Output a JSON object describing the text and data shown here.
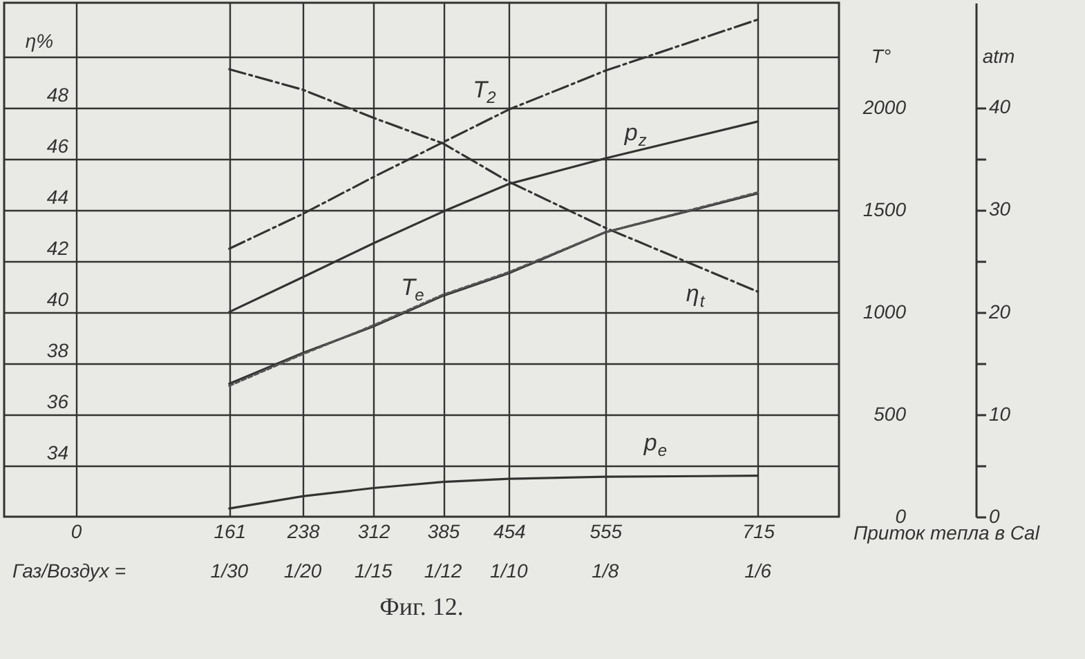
{
  "chart_data": {
    "type": "line",
    "title": "Фиг. 12.",
    "xlabel": "Приток тепла в Cal",
    "ylabel": "η%",
    "y2label": "T°",
    "y3label": "atm",
    "annotations": [
      "Газ/Воздух =",
      "1/30",
      "1/20",
      "1/15",
      "1/12",
      "1/10",
      "1/8",
      "1/6"
    ],
    "x": [
      161,
      238,
      312,
      385,
      454,
      555,
      715
    ],
    "xlim": [
      -75,
      800
    ],
    "xticks": [
      0,
      161,
      238,
      312,
      385,
      454,
      555,
      715
    ],
    "ylim": [
      32,
      52.1
    ],
    "yticks": [
      34,
      36,
      38,
      40,
      42,
      44,
      46,
      48,
      {
        "value": 50,
        "label": null
      }
    ],
    "y2lim": [
      0,
      2512
    ],
    "y2ticks": [
      0,
      500,
      1000,
      1500,
      2000
    ],
    "y3lim": [
      0,
      50.2
    ],
    "y3ticks": [
      0,
      {
        "value": 5,
        "label": null
      },
      10,
      {
        "value": 15,
        "label": null
      },
      20,
      {
        "value": 25,
        "label": null
      },
      30,
      {
        "value": 35,
        "label": null
      },
      40
    ],
    "grid": true,
    "line_style": "solid",
    "series": [
      {
        "name": "T$_{2}$",
        "color": "#333333",
        "axis": "y2",
        "line_style": "dashed",
        "values": [
          1310,
          1480,
          1660,
          1830,
          1990,
          2180,
          2430
        ]
      },
      {
        "name": "p$_{z}$",
        "color": "#333333",
        "axis": "y3",
        "values": [
          20,
          23.4,
          26.7,
          29.8,
          32.5,
          35,
          38.6
        ]
      },
      {
        "name": "T$_{e}$",
        "color": "#333333",
        "axis": "y2",
        "values": [
          650,
          800,
          930,
          1080,
          1190,
          1390,
          1580
        ]
      },
      {
        "color": "#555555",
        "axis": "y2",
        "line_style": "dotted",
        "values": [
          640,
          795,
          935,
          1085,
          1195,
          1390,
          1585
        ]
      },
      {
        "name": "η$_{t}$",
        "color": "#333333",
        "axis": "y",
        "line_style": "dashed",
        "values": [
          49.5,
          48.7,
          47.6,
          46.6,
          45.1,
          43.3,
          40.8
        ]
      },
      {
        "name": "p$_{e}$",
        "color": "#333333",
        "axis": "y3",
        "values": [
          0.8,
          2.0,
          2.8,
          3.4,
          3.7,
          3.9,
          4.0
        ]
      }
    ]
  }
}
